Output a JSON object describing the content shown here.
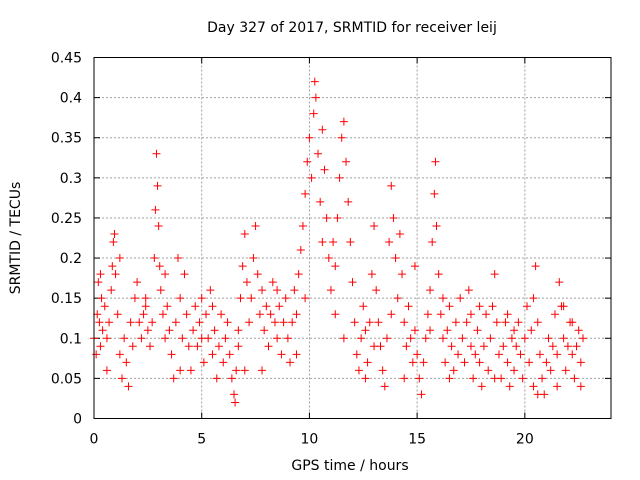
{
  "chart_data": {
    "type": "scatter",
    "title": "Day 327 of 2017, SRMTID for receiver leij",
    "xlabel": "GPS time / hours",
    "ylabel": "SRMTID / TECUs",
    "xlim": [
      0,
      24
    ],
    "ylim": [
      0,
      0.45
    ],
    "xticks": [
      "0",
      "5",
      "10",
      "15",
      "20"
    ],
    "yticks": [
      "0",
      "0.05",
      "0.1",
      "0.15",
      "0.2",
      "0.25",
      "0.3",
      "0.35",
      "0.4",
      "0.45"
    ],
    "grid": true,
    "marker": "plus",
    "color": "#ff0000",
    "series": [
      {
        "name": "SRMTID",
        "points": [
          [
            0.0,
            0.1
          ],
          [
            0.1,
            0.08
          ],
          [
            0.15,
            0.13
          ],
          [
            0.2,
            0.17
          ],
          [
            0.25,
            0.12
          ],
          [
            0.3,
            0.09
          ],
          [
            0.35,
            0.15
          ],
          [
            0.4,
            0.11
          ],
          [
            0.5,
            0.14
          ],
          [
            0.6,
            0.1
          ],
          [
            0.7,
            0.12
          ],
          [
            0.8,
            0.16
          ],
          [
            0.85,
            0.19
          ],
          [
            0.9,
            0.22
          ],
          [
            0.95,
            0.23
          ],
          [
            1.0,
            0.18
          ],
          [
            1.1,
            0.13
          ],
          [
            1.2,
            0.08
          ],
          [
            1.3,
            0.05
          ],
          [
            1.4,
            0.1
          ],
          [
            1.5,
            0.07
          ],
          [
            1.6,
            0.04
          ],
          [
            1.7,
            0.12
          ],
          [
            1.8,
            0.09
          ],
          [
            1.9,
            0.15
          ],
          [
            2.0,
            0.17
          ],
          [
            2.1,
            0.12
          ],
          [
            2.2,
            0.1
          ],
          [
            2.3,
            0.13
          ],
          [
            2.4,
            0.14
          ],
          [
            2.5,
            0.11
          ],
          [
            2.6,
            0.09
          ],
          [
            2.7,
            0.12
          ],
          [
            2.8,
            0.2
          ],
          [
            2.85,
            0.26
          ],
          [
            2.9,
            0.33
          ],
          [
            2.95,
            0.29
          ],
          [
            3.0,
            0.24
          ],
          [
            3.05,
            0.19
          ],
          [
            3.1,
            0.16
          ],
          [
            3.2,
            0.13
          ],
          [
            3.3,
            0.1
          ],
          [
            3.4,
            0.14
          ],
          [
            3.5,
            0.11
          ],
          [
            3.6,
            0.08
          ],
          [
            3.7,
            0.05
          ],
          [
            3.8,
            0.12
          ],
          [
            3.9,
            0.2
          ],
          [
            4.0,
            0.15
          ],
          [
            4.1,
            0.1
          ],
          [
            4.2,
            0.18
          ],
          [
            4.3,
            0.13
          ],
          [
            4.4,
            0.09
          ],
          [
            4.5,
            0.06
          ],
          [
            4.6,
            0.11
          ],
          [
            4.7,
            0.14
          ],
          [
            4.8,
            0.09
          ],
          [
            4.9,
            0.12
          ],
          [
            5.0,
            0.1
          ],
          [
            5.1,
            0.07
          ],
          [
            5.2,
            0.13
          ],
          [
            5.3,
            0.1
          ],
          [
            5.4,
            0.16
          ],
          [
            5.5,
            0.08
          ],
          [
            5.6,
            0.11
          ],
          [
            5.7,
            0.05
          ],
          [
            5.8,
            0.09
          ],
          [
            5.9,
            0.13
          ],
          [
            6.0,
            0.07
          ],
          [
            6.1,
            0.1
          ],
          [
            6.2,
            0.12
          ],
          [
            6.3,
            0.08
          ],
          [
            6.4,
            0.05
          ],
          [
            6.5,
            0.03
          ],
          [
            6.55,
            0.02
          ],
          [
            6.6,
            0.06
          ],
          [
            6.7,
            0.11
          ],
          [
            6.8,
            0.15
          ],
          [
            6.9,
            0.19
          ],
          [
            7.0,
            0.23
          ],
          [
            7.1,
            0.17
          ],
          [
            7.2,
            0.12
          ],
          [
            7.3,
            0.15
          ],
          [
            7.4,
            0.2
          ],
          [
            7.5,
            0.24
          ],
          [
            7.6,
            0.18
          ],
          [
            7.7,
            0.13
          ],
          [
            7.8,
            0.16
          ],
          [
            7.9,
            0.11
          ],
          [
            8.0,
            0.14
          ],
          [
            8.1,
            0.09
          ],
          [
            8.2,
            0.13
          ],
          [
            8.3,
            0.17
          ],
          [
            8.4,
            0.12
          ],
          [
            8.5,
            0.1
          ],
          [
            8.6,
            0.14
          ],
          [
            8.7,
            0.08
          ],
          [
            8.8,
            0.12
          ],
          [
            8.9,
            0.15
          ],
          [
            9.0,
            0.1
          ],
          [
            9.1,
            0.07
          ],
          [
            9.2,
            0.12
          ],
          [
            9.3,
            0.16
          ],
          [
            9.4,
            0.13
          ],
          [
            9.5,
            0.18
          ],
          [
            9.6,
            0.21
          ],
          [
            9.7,
            0.24
          ],
          [
            9.8,
            0.28
          ],
          [
            9.9,
            0.32
          ],
          [
            10.0,
            0.35
          ],
          [
            10.1,
            0.3
          ],
          [
            10.2,
            0.38
          ],
          [
            10.25,
            0.42
          ],
          [
            10.3,
            0.4
          ],
          [
            10.4,
            0.33
          ],
          [
            10.5,
            0.27
          ],
          [
            10.6,
            0.36
          ],
          [
            10.7,
            0.31
          ],
          [
            10.8,
            0.25
          ],
          [
            10.9,
            0.2
          ],
          [
            11.0,
            0.16
          ],
          [
            11.1,
            0.22
          ],
          [
            11.2,
            0.19
          ],
          [
            11.3,
            0.25
          ],
          [
            11.4,
            0.3
          ],
          [
            11.5,
            0.35
          ],
          [
            11.6,
            0.37
          ],
          [
            11.7,
            0.32
          ],
          [
            11.8,
            0.27
          ],
          [
            11.9,
            0.22
          ],
          [
            12.0,
            0.17
          ],
          [
            12.1,
            0.12
          ],
          [
            12.2,
            0.08
          ],
          [
            12.3,
            0.06
          ],
          [
            12.4,
            0.1
          ],
          [
            12.5,
            0.14
          ],
          [
            12.6,
            0.11
          ],
          [
            12.7,
            0.07
          ],
          [
            12.8,
            0.12
          ],
          [
            12.9,
            0.18
          ],
          [
            13.0,
            0.24
          ],
          [
            13.1,
            0.16
          ],
          [
            13.2,
            0.12
          ],
          [
            13.3,
            0.09
          ],
          [
            13.4,
            0.06
          ],
          [
            13.5,
            0.04
          ],
          [
            13.6,
            0.1
          ],
          [
            13.7,
            0.22
          ],
          [
            13.8,
            0.29
          ],
          [
            13.9,
            0.25
          ],
          [
            14.0,
            0.2
          ],
          [
            14.1,
            0.15
          ],
          [
            14.2,
            0.23
          ],
          [
            14.3,
            0.18
          ],
          [
            14.4,
            0.12
          ],
          [
            14.5,
            0.09
          ],
          [
            14.6,
            0.14
          ],
          [
            14.7,
            0.1
          ],
          [
            14.8,
            0.07
          ],
          [
            14.9,
            0.11
          ],
          [
            15.0,
            0.08
          ],
          [
            15.1,
            0.05
          ],
          [
            15.2,
            0.03
          ],
          [
            15.3,
            0.07
          ],
          [
            15.4,
            0.1
          ],
          [
            15.5,
            0.13
          ],
          [
            15.6,
            0.16
          ],
          [
            15.7,
            0.22
          ],
          [
            15.8,
            0.28
          ],
          [
            15.85,
            0.32
          ],
          [
            15.9,
            0.24
          ],
          [
            16.0,
            0.18
          ],
          [
            16.1,
            0.13
          ],
          [
            16.2,
            0.1
          ],
          [
            16.3,
            0.07
          ],
          [
            16.4,
            0.11
          ],
          [
            16.5,
            0.14
          ],
          [
            16.6,
            0.09
          ],
          [
            16.7,
            0.06
          ],
          [
            16.8,
            0.12
          ],
          [
            16.9,
            0.08
          ],
          [
            17.0,
            0.15
          ],
          [
            17.1,
            0.1
          ],
          [
            17.2,
            0.07
          ],
          [
            17.3,
            0.12
          ],
          [
            17.4,
            0.16
          ],
          [
            17.5,
            0.09
          ],
          [
            17.6,
            0.05
          ],
          [
            17.7,
            0.08
          ],
          [
            17.8,
            0.11
          ],
          [
            17.9,
            0.07
          ],
          [
            18.0,
            0.04
          ],
          [
            18.1,
            0.09
          ],
          [
            18.2,
            0.13
          ],
          [
            18.3,
            0.06
          ],
          [
            18.4,
            0.1
          ],
          [
            18.5,
            0.14
          ],
          [
            18.6,
            0.18
          ],
          [
            18.7,
            0.12
          ],
          [
            18.8,
            0.08
          ],
          [
            18.9,
            0.05
          ],
          [
            19.0,
            0.09
          ],
          [
            19.1,
            0.12
          ],
          [
            19.2,
            0.07
          ],
          [
            19.3,
            0.04
          ],
          [
            19.4,
            0.1
          ],
          [
            19.5,
            0.06
          ],
          [
            19.6,
            0.09
          ],
          [
            19.7,
            0.12
          ],
          [
            19.8,
            0.08
          ],
          [
            19.9,
            0.05
          ],
          [
            20.0,
            0.1
          ],
          [
            20.1,
            0.14
          ],
          [
            20.2,
            0.07
          ],
          [
            20.3,
            0.11
          ],
          [
            20.4,
            0.15
          ],
          [
            20.5,
            0.19
          ],
          [
            20.6,
            0.12
          ],
          [
            20.7,
            0.08
          ],
          [
            20.8,
            0.05
          ],
          [
            20.9,
            0.03
          ],
          [
            21.0,
            0.07
          ],
          [
            21.1,
            0.1
          ],
          [
            21.2,
            0.06
          ],
          [
            21.3,
            0.09
          ],
          [
            21.4,
            0.13
          ],
          [
            21.5,
            0.08
          ],
          [
            21.6,
            0.17
          ],
          [
            21.7,
            0.14
          ],
          [
            21.8,
            0.1
          ],
          [
            21.9,
            0.06
          ],
          [
            22.0,
            0.09
          ],
          [
            22.1,
            0.12
          ],
          [
            22.2,
            0.08
          ],
          [
            22.3,
            0.05
          ],
          [
            22.4,
            0.09
          ],
          [
            22.5,
            0.11
          ],
          [
            22.6,
            0.07
          ],
          [
            22.7,
            0.1
          ],
          [
            0.3,
            0.18
          ],
          [
            1.2,
            0.2
          ],
          [
            2.4,
            0.15
          ],
          [
            4.0,
            0.06
          ],
          [
            5.5,
            0.14
          ],
          [
            6.7,
            0.09
          ],
          [
            7.8,
            0.06
          ],
          [
            8.5,
            0.16
          ],
          [
            9.4,
            0.08
          ],
          [
            10.6,
            0.22
          ],
          [
            11.2,
            0.13
          ],
          [
            12.6,
            0.05
          ],
          [
            13.8,
            0.13
          ],
          [
            14.4,
            0.05
          ],
          [
            15.6,
            0.11
          ],
          [
            16.5,
            0.05
          ],
          [
            17.5,
            0.13
          ],
          [
            18.6,
            0.05
          ],
          [
            19.5,
            0.11
          ],
          [
            20.6,
            0.03
          ],
          [
            21.5,
            0.04
          ],
          [
            22.2,
            0.12
          ],
          [
            0.6,
            0.06
          ],
          [
            3.3,
            0.18
          ],
          [
            5.0,
            0.15
          ],
          [
            7.0,
            0.06
          ],
          [
            9.8,
            0.15
          ],
          [
            11.6,
            0.1
          ],
          [
            13.0,
            0.09
          ],
          [
            14.9,
            0.19
          ],
          [
            16.2,
            0.15
          ],
          [
            17.9,
            0.14
          ],
          [
            19.2,
            0.13
          ],
          [
            20.4,
            0.04
          ],
          [
            21.8,
            0.14
          ],
          [
            22.6,
            0.04
          ]
        ]
      }
    ]
  }
}
